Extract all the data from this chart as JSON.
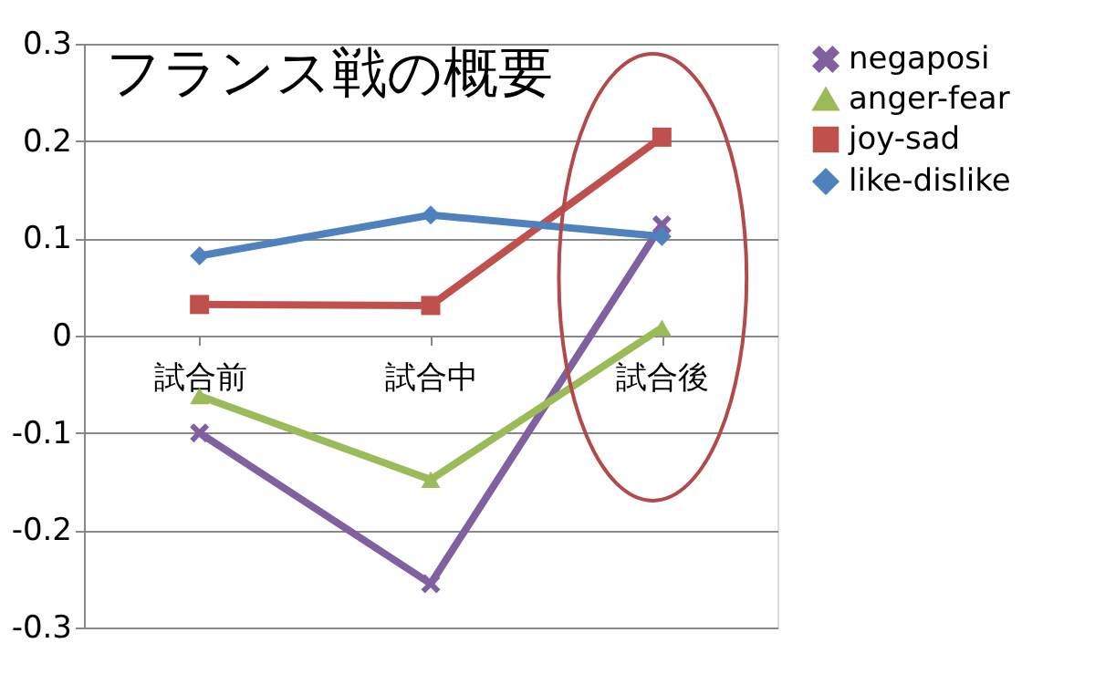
{
  "chart_data": {
    "type": "line",
    "title": "フランス戦の概要",
    "categories": [
      "試合前",
      "試合中",
      "試合後"
    ],
    "series": [
      {
        "name": "negaposi",
        "color": "#7f60a0",
        "marker": "cross",
        "values": [
          -0.1,
          -0.255,
          0.114
        ]
      },
      {
        "name": "anger-fear",
        "color": "#9bbb59",
        "marker": "triangle",
        "values": [
          -0.062,
          -0.148,
          0.008
        ]
      },
      {
        "name": "joy-sad",
        "color": "#c0504d",
        "marker": "square",
        "values": [
          0.032,
          0.031,
          0.204
        ]
      },
      {
        "name": "like-dislike",
        "color": "#4f81bd",
        "marker": "diamond",
        "values": [
          0.082,
          0.124,
          0.102
        ]
      }
    ],
    "ylim": [
      -0.3,
      0.3
    ],
    "yticks": [
      -0.3,
      -0.2,
      -0.1,
      0,
      0.1,
      0.2,
      0.3
    ],
    "grid": "y",
    "legend": "right"
  }
}
